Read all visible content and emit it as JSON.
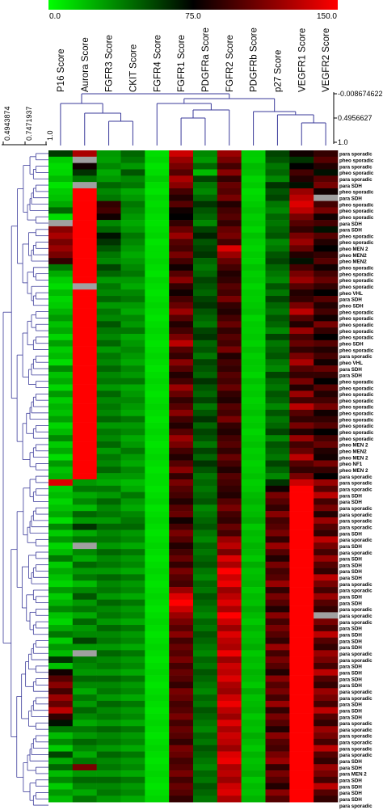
{
  "chart_data": {
    "type": "heatmap",
    "title": "",
    "color_scale": {
      "min": 0.0,
      "mid": 75.0,
      "max": 150.0,
      "min_label": "0.0",
      "mid_label": "75.0",
      "max_label": "150.0",
      "min_color": "#00ff00",
      "mid_color": "#000000",
      "max_color": "#ff0000",
      "missing_color": "#a0a0a0"
    },
    "columns": [
      "P16 Score",
      "Aurora Score",
      "FGFR3 Score",
      "CKIT Score",
      "FGFR4 Score",
      "FGFR1 Score",
      "PDGFRa Score",
      "FGFR2 Score",
      "PDGFRb Score",
      "p27 Score",
      "VEGFR1 Score",
      "VEGFR2 Score"
    ],
    "rows": [
      "para sporadic",
      "pheo sporadic",
      "para sporadic",
      "pheo sporadic",
      "para sporadic",
      "para SDH",
      "pheo sporadic",
      "para SDH",
      "pheo sporadic",
      "pheo sporadic",
      "pheo sporadic",
      "para SDH",
      "para SDH",
      "pheo sporadic",
      "pheo sporadic",
      "pheo MEN 2",
      "pheo MEN2",
      "pheo MEN2",
      "pheo sporadic",
      "pheo sporadic",
      "pheo sporadic",
      "pheo sporadic",
      "pheo VHL",
      "para SDH",
      "pheo SDH",
      "pheo sporadic",
      "pheo sporadic",
      "pheo sporadic",
      "pheo sporadic",
      "pheo sporadic",
      "pheo SDH",
      "pheo sporadic",
      "para sporadic",
      "pheo VHL",
      "para SDH",
      "para SDH",
      "pheo sporadic",
      "pheo sporadic",
      "pheo sporadic",
      "pheo sporadic",
      "pheo sporadic",
      "pheo sporadic",
      "pheo sporadic",
      "pheo sporadic",
      "pheo sporadic",
      "pheo sporadic",
      "pheo MEN 2",
      "pheo MEN2",
      "pheo MEN 2",
      "pheo NF1",
      "pheo MEN 2",
      "para sporadic",
      "para sporadic",
      "para sporadic",
      "para SDH",
      "para SDH",
      "para sporadic",
      "para sporadic",
      "para sporadic",
      "para sporadic",
      "para SDH",
      "para sporadic",
      "para SDH",
      "para sporadic",
      "para SDH",
      "para SDH",
      "para SDH",
      "para SDH",
      "para sporadic",
      "para sporadic",
      "para SDH",
      "para SDH",
      "para sporadic",
      "para sporadic",
      "para sporadic",
      "para SDH",
      "para SDH",
      "para SDH",
      "para SDH",
      "para sporadic",
      "para sporadic",
      "para SDH",
      "para SDH",
      "para SDH",
      "para SDH",
      "para sporadic",
      "para sporadic",
      "para SDH",
      "para SDH",
      "para SDH",
      "para sporadic",
      "para sporadic",
      "para sporadic",
      "para sporadic",
      "para sporadic",
      "para sporadic",
      "para SDH",
      "para SDH",
      "para MEN 2",
      "para SDH",
      "para SDH",
      "para SDH",
      "para SDH",
      "para sporadic"
    ],
    "values": [
      [
        58,
        125,
        30,
        45,
        10,
        135,
        35,
        120,
        15,
        55,
        80,
        90
      ],
      [
        15,
        null,
        28,
        40,
        12,
        120,
        30,
        110,
        14,
        50,
        60,
        100
      ],
      [
        10,
        80,
        35,
        30,
        8,
        110,
        45,
        95,
        20,
        40,
        75,
        85
      ],
      [
        12,
        60,
        25,
        50,
        10,
        100,
        20,
        115,
        18,
        45,
        95,
        70
      ],
      [
        20,
        40,
        30,
        35,
        15,
        125,
        55,
        90,
        12,
        35,
        85,
        100
      ],
      [
        8,
        null,
        45,
        40,
        10,
        115,
        40,
        105,
        15,
        60,
        70,
        110
      ],
      [
        15,
        150,
        35,
        25,
        8,
        95,
        35,
        100,
        10,
        50,
        120,
        80
      ],
      [
        18,
        150,
        40,
        30,
        12,
        85,
        45,
        110,
        12,
        55,
        130,
        null
      ],
      [
        25,
        150,
        90,
        40,
        10,
        100,
        60,
        85,
        15,
        40,
        140,
        95
      ],
      [
        45,
        150,
        95,
        35,
        12,
        80,
        50,
        95,
        18,
        35,
        130,
        110
      ],
      [
        10,
        150,
        80,
        30,
        10,
        75,
        45,
        100,
        14,
        45,
        110,
        80
      ],
      [
        null,
        150,
        35,
        25,
        8,
        90,
        35,
        90,
        16,
        40,
        100,
        95
      ],
      [
        115,
        150,
        45,
        30,
        10,
        105,
        55,
        105,
        12,
        45,
        90,
        70
      ],
      [
        125,
        150,
        70,
        40,
        12,
        120,
        65,
        110,
        18,
        50,
        110,
        100
      ],
      [
        110,
        150,
        60,
        35,
        8,
        100,
        50,
        95,
        14,
        35,
        120,
        85
      ],
      [
        120,
        150,
        50,
        30,
        10,
        95,
        55,
        140,
        12,
        40,
        105,
        75
      ],
      [
        110,
        150,
        40,
        25,
        10,
        110,
        60,
        120,
        15,
        50,
        85,
        90
      ],
      [
        90,
        150,
        35,
        30,
        12,
        95,
        45,
        105,
        13,
        55,
        70,
        100
      ],
      [
        40,
        150,
        55,
        35,
        10,
        80,
        40,
        95,
        18,
        45,
        95,
        80
      ],
      [
        25,
        150,
        45,
        40,
        8,
        100,
        45,
        85,
        14,
        40,
        110,
        95
      ],
      [
        15,
        150,
        30,
        30,
        12,
        115,
        55,
        90,
        16,
        35,
        120,
        105
      ],
      [
        10,
        null,
        40,
        25,
        10,
        90,
        50,
        100,
        12,
        50,
        100,
        90
      ],
      [
        20,
        150,
        35,
        35,
        8,
        80,
        45,
        95,
        15,
        40,
        85,
        75
      ],
      [
        12,
        150,
        45,
        40,
        10,
        95,
        55,
        110,
        14,
        55,
        90,
        100
      ],
      [
        15,
        150,
        30,
        30,
        12,
        105,
        60,
        90,
        16,
        45,
        110,
        85
      ],
      [
        22,
        150,
        40,
        25,
        10,
        120,
        50,
        85,
        18,
        40,
        130,
        95
      ],
      [
        30,
        150,
        35,
        35,
        8,
        100,
        45,
        95,
        12,
        50,
        100,
        80
      ],
      [
        18,
        150,
        50,
        30,
        10,
        85,
        40,
        105,
        15,
        45,
        85,
        110
      ],
      [
        25,
        150,
        40,
        40,
        12,
        95,
        55,
        90,
        14,
        35,
        120,
        90
      ],
      [
        12,
        150,
        35,
        25,
        10,
        110,
        60,
        100,
        16,
        55,
        95,
        75
      ],
      [
        28,
        150,
        45,
        30,
        8,
        130,
        45,
        95,
        13,
        40,
        105,
        100
      ],
      [
        15,
        150,
        30,
        35,
        10,
        100,
        50,
        110,
        18,
        45,
        90,
        85
      ],
      [
        20,
        150,
        40,
        30,
        12,
        90,
        40,
        85,
        14,
        50,
        110,
        95
      ],
      [
        10,
        150,
        35,
        25,
        10,
        115,
        55,
        95,
        16,
        40,
        125,
        80
      ],
      [
        35,
        150,
        45,
        35,
        8,
        100,
        50,
        90,
        15,
        35,
        100,
        105
      ],
      [
        18,
        150,
        35,
        30,
        10,
        85,
        45,
        100,
        12,
        55,
        90,
        90
      ],
      [
        25,
        150,
        40,
        40,
        12,
        95,
        60,
        95,
        18,
        45,
        110,
        75
      ],
      [
        12,
        150,
        30,
        25,
        10,
        120,
        50,
        105,
        14,
        40,
        85,
        100
      ],
      [
        30,
        150,
        45,
        30,
        8,
        105,
        45,
        90,
        16,
        50,
        120,
        85
      ],
      [
        15,
        150,
        35,
        35,
        10,
        90,
        55,
        85,
        13,
        45,
        95,
        95
      ],
      [
        22,
        150,
        40,
        30,
        12,
        100,
        40,
        100,
        15,
        35,
        130,
        110
      ],
      [
        18,
        150,
        35,
        25,
        10,
        115,
        50,
        95,
        18,
        50,
        100,
        80
      ],
      [
        28,
        150,
        45,
        40,
        8,
        95,
        60,
        110,
        14,
        40,
        90,
        90
      ],
      [
        12,
        150,
        30,
        30,
        10,
        85,
        45,
        90,
        16,
        45,
        110,
        100
      ],
      [
        20,
        150,
        40,
        35,
        12,
        100,
        55,
        85,
        12,
        55,
        85,
        75
      ],
      [
        35,
        150,
        35,
        25,
        10,
        120,
        50,
        95,
        15,
        35,
        120,
        95
      ],
      [
        15,
        150,
        45,
        30,
        8,
        110,
        40,
        100,
        18,
        50,
        95,
        105
      ],
      [
        25,
        150,
        30,
        40,
        10,
        95,
        55,
        90,
        14,
        45,
        105,
        85
      ],
      [
        10,
        150,
        40,
        30,
        12,
        85,
        45,
        105,
        16,
        40,
        130,
        80
      ],
      [
        30,
        150,
        35,
        25,
        10,
        100,
        60,
        95,
        13,
        55,
        100,
        110
      ],
      [
        18,
        150,
        45,
        35,
        8,
        115,
        50,
        85,
        15,
        45,
        90,
        90
      ],
      [
        22,
        150,
        30,
        30,
        10,
        90,
        40,
        100,
        18,
        35,
        110,
        75
      ],
      [
        140,
        30,
        25,
        20,
        10,
        110,
        45,
        95,
        14,
        60,
        135,
        120
      ],
      [
        15,
        40,
        40,
        25,
        8,
        100,
        40,
        90,
        16,
        80,
        150,
        100
      ],
      [
        20,
        25,
        30,
        40,
        10,
        95,
        45,
        85,
        20,
        110,
        150,
        130
      ],
      [
        12,
        35,
        45,
        30,
        12,
        85,
        50,
        100,
        22,
        100,
        150,
        95
      ],
      [
        18,
        20,
        35,
        25,
        8,
        100,
        35,
        110,
        18,
        90,
        150,
        110
      ],
      [
        25,
        45,
        40,
        35,
        10,
        105,
        40,
        95,
        20,
        115,
        150,
        85
      ],
      [
        10,
        30,
        30,
        40,
        12,
        80,
        45,
        90,
        24,
        95,
        150,
        120
      ],
      [
        35,
        60,
        45,
        45,
        10,
        95,
        50,
        105,
        16,
        100,
        150,
        100
      ],
      [
        15,
        25,
        35,
        30,
        8,
        110,
        40,
        95,
        20,
        110,
        150,
        90
      ],
      [
        30,
        40,
        40,
        35,
        10,
        100,
        35,
        120,
        18,
        90,
        150,
        130
      ],
      [
        12,
        null,
        30,
        25,
        12,
        85,
        45,
        130,
        22,
        120,
        150,
        110
      ],
      [
        20,
        35,
        45,
        40,
        10,
        95,
        40,
        110,
        20,
        100,
        150,
        95
      ],
      [
        40,
        25,
        35,
        30,
        8,
        105,
        45,
        140,
        16,
        85,
        150,
        120
      ],
      [
        15,
        45,
        40,
        35,
        10,
        90,
        50,
        125,
        24,
        110,
        150,
        100
      ],
      [
        25,
        30,
        30,
        25,
        12,
        110,
        40,
        150,
        18,
        95,
        150,
        90
      ],
      [
        18,
        40,
        45,
        40,
        10,
        100,
        35,
        135,
        20,
        100,
        150,
        130
      ],
      [
        12,
        20,
        35,
        30,
        8,
        95,
        45,
        145,
        22,
        120,
        150,
        110
      ],
      [
        30,
        35,
        40,
        35,
        10,
        120,
        40,
        120,
        16,
        90,
        150,
        95
      ],
      [
        15,
        50,
        30,
        25,
        12,
        140,
        50,
        130,
        20,
        110,
        150,
        120
      ],
      [
        22,
        30,
        45,
        40,
        10,
        150,
        45,
        140,
        18,
        100,
        150,
        100
      ],
      [
        35,
        40,
        35,
        30,
        8,
        135,
        40,
        125,
        24,
        85,
        150,
        90
      ],
      [
        18,
        25,
        40,
        35,
        10,
        120,
        35,
        150,
        20,
        115,
        150,
        null
      ],
      [
        12,
        45,
        30,
        25,
        12,
        110,
        45,
        135,
        16,
        95,
        150,
        110
      ],
      [
        25,
        30,
        45,
        40,
        10,
        100,
        40,
        120,
        22,
        110,
        150,
        95
      ],
      [
        40,
        35,
        35,
        30,
        8,
        115,
        50,
        140,
        18,
        100,
        150,
        130
      ],
      [
        15,
        55,
        40,
        35,
        10,
        95,
        45,
        130,
        20,
        90,
        150,
        100
      ],
      [
        30,
        30,
        30,
        25,
        12,
        105,
        40,
        125,
        24,
        120,
        150,
        90
      ],
      [
        20,
        null,
        45,
        40,
        10,
        100,
        35,
        145,
        16,
        95,
        150,
        120
      ],
      [
        60,
        40,
        35,
        30,
        8,
        110,
        45,
        120,
        20,
        110,
        150,
        110
      ],
      [
        18,
        35,
        40,
        35,
        10,
        95,
        40,
        135,
        18,
        100,
        150,
        95
      ],
      [
        80,
        30,
        30,
        25,
        12,
        105,
        50,
        130,
        22,
        85,
        150,
        130
      ],
      [
        100,
        45,
        45,
        40,
        10,
        100,
        45,
        140,
        20,
        115,
        150,
        100
      ],
      [
        115,
        35,
        35,
        30,
        8,
        90,
        40,
        125,
        16,
        100,
        150,
        90
      ],
      [
        95,
        25,
        40,
        35,
        10,
        110,
        35,
        120,
        24,
        110,
        150,
        120
      ],
      [
        120,
        40,
        30,
        25,
        12,
        105,
        45,
        135,
        18,
        95,
        150,
        110
      ],
      [
        105,
        30,
        45,
        40,
        10,
        95,
        40,
        145,
        20,
        120,
        150,
        95
      ],
      [
        130,
        45,
        35,
        30,
        8,
        100,
        50,
        130,
        22,
        90,
        150,
        130
      ],
      [
        90,
        35,
        40,
        35,
        10,
        110,
        45,
        120,
        16,
        110,
        150,
        100
      ],
      [
        70,
        25,
        30,
        25,
        12,
        95,
        40,
        140,
        20,
        100,
        150,
        90
      ],
      [
        40,
        40,
        45,
        40,
        10,
        105,
        35,
        125,
        18,
        85,
        150,
        120
      ],
      [
        20,
        30,
        35,
        30,
        8,
        100,
        45,
        135,
        24,
        115,
        150,
        110
      ],
      [
        35,
        45,
        40,
        35,
        10,
        90,
        40,
        130,
        20,
        100,
        150,
        95
      ],
      [
        15,
        35,
        30,
        25,
        12,
        110,
        50,
        120,
        16,
        95,
        150,
        130
      ],
      [
        55,
        25,
        45,
        40,
        10,
        105,
        45,
        140,
        22,
        110,
        150,
        100
      ],
      [
        25,
        40,
        35,
        30,
        8,
        95,
        40,
        145,
        18,
        120,
        150,
        90
      ],
      [
        45,
        110,
        40,
        35,
        10,
        100,
        35,
        125,
        20,
        90,
        150,
        120
      ],
      [
        20,
        30,
        30,
        25,
        12,
        110,
        45,
        130,
        24,
        110,
        150,
        110
      ],
      [
        35,
        45,
        45,
        40,
        10,
        95,
        40,
        120,
        16,
        100,
        150,
        95
      ],
      [
        15,
        35,
        35,
        30,
        8,
        105,
        50,
        135,
        20,
        85,
        150,
        130
      ],
      [
        30,
        25,
        40,
        35,
        10,
        100,
        45,
        140,
        18,
        115,
        150,
        100
      ],
      [
        20,
        40,
        30,
        25,
        12,
        90,
        40,
        125,
        22,
        100,
        150,
        90
      ]
    ],
    "column_tree_heights": {
      "labels": [
        "-0.008674622",
        "0.4956627",
        "1.0"
      ]
    },
    "row_tree_heights": {
      "labels": [
        "0.4943874",
        "0.7471937",
        "1.0"
      ]
    }
  }
}
